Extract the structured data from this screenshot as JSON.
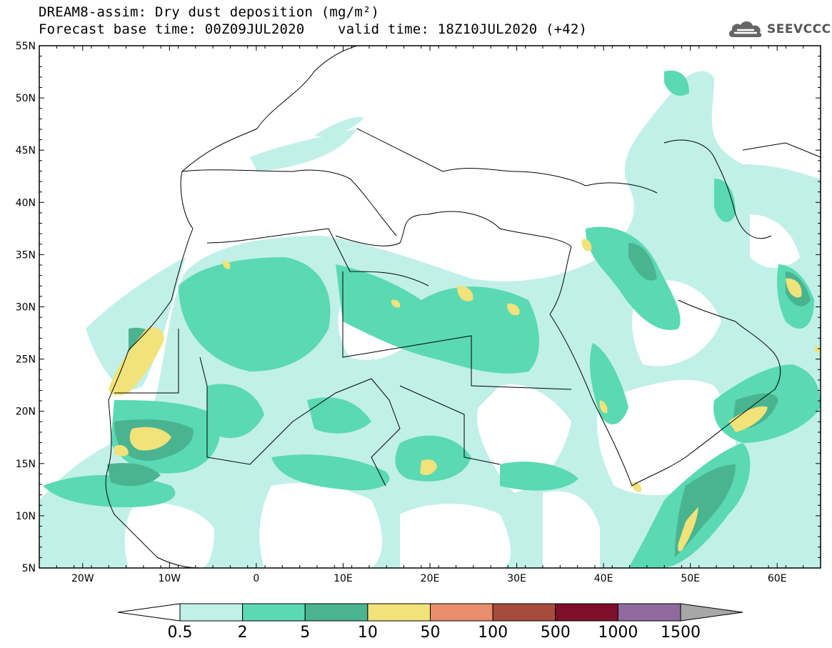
{
  "header": {
    "title_line_1": "DREAM8-assim: Dry dust deposition (mg/m²)",
    "title_line_2_left": "Forecast base time: 00Z09JUL2020",
    "title_line_2_right": "valid time: 18Z10JUL2020 (+42)"
  },
  "logo": {
    "text": "SEEVCCC",
    "icon": "cloud-logo-icon"
  },
  "map": {
    "lat_labels": [
      "55N",
      "50N",
      "45N",
      "40N",
      "35N",
      "30N",
      "25N",
      "20N",
      "15N",
      "10N",
      "5N"
    ],
    "lon_labels": [
      "20W",
      "10W",
      "0",
      "10E",
      "20E",
      "30E",
      "40E",
      "50E",
      "60E"
    ],
    "lat_range": [
      5,
      55
    ],
    "lon_range": [
      -25,
      65
    ]
  },
  "legend": {
    "labels": [
      "0.5",
      "2",
      "5",
      "10",
      "50",
      "100",
      "500",
      "1000",
      "1500"
    ],
    "colors": [
      "#c1f0e8",
      "#5ad9b3",
      "#49b48f",
      "#f1e27a",
      "#e98e6a",
      "#a84b3f",
      "#7d0f2a",
      "#8f6a9f",
      "#a7a7a7"
    ],
    "under_color": "#ffffff"
  }
}
